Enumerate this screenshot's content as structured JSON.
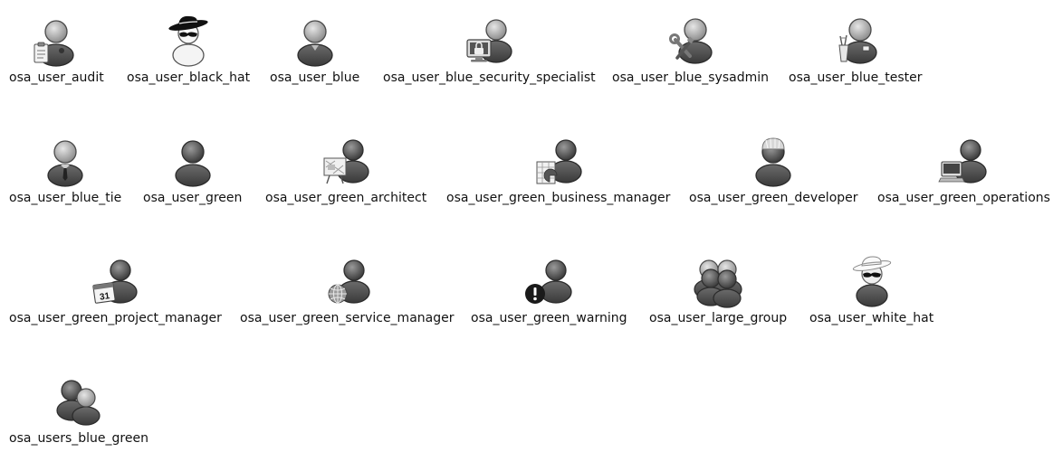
{
  "icons": [
    {
      "label": "osa_user_audit",
      "icon": "user-audit-icon"
    },
    {
      "label": "osa_user_black_hat",
      "icon": "user-black-hat-icon"
    },
    {
      "label": "osa_user_blue",
      "icon": "user-blue-icon"
    },
    {
      "label": "osa_user_blue_security_specialist",
      "icon": "user-security-specialist-icon"
    },
    {
      "label": "osa_user_blue_sysadmin",
      "icon": "user-sysadmin-icon"
    },
    {
      "label": "osa_user_blue_tester",
      "icon": "user-tester-icon"
    },
    {
      "label": "osa_user_blue_tie",
      "icon": "user-blue-tie-icon"
    },
    {
      "label": "osa_user_green",
      "icon": "user-green-icon"
    },
    {
      "label": "osa_user_green_architect",
      "icon": "user-architect-icon"
    },
    {
      "label": "osa_user_green_business_manager",
      "icon": "user-business-manager-icon"
    },
    {
      "label": "osa_user_green_developer",
      "icon": "user-developer-icon"
    },
    {
      "label": "osa_user_green_operations",
      "icon": "user-operations-icon"
    },
    {
      "label": "osa_user_green_project_manager",
      "icon": "user-project-manager-icon"
    },
    {
      "label": "osa_user_green_service_manager",
      "icon": "user-service-manager-icon"
    },
    {
      "label": "osa_user_green_warning",
      "icon": "user-warning-icon"
    },
    {
      "label": "osa_user_large_group",
      "icon": "user-large-group-icon"
    },
    {
      "label": "osa_user_white_hat",
      "icon": "user-white-hat-icon"
    },
    {
      "label": "osa_users_blue_green",
      "icon": "users-blue-green-icon"
    }
  ],
  "calendar_day": "31"
}
